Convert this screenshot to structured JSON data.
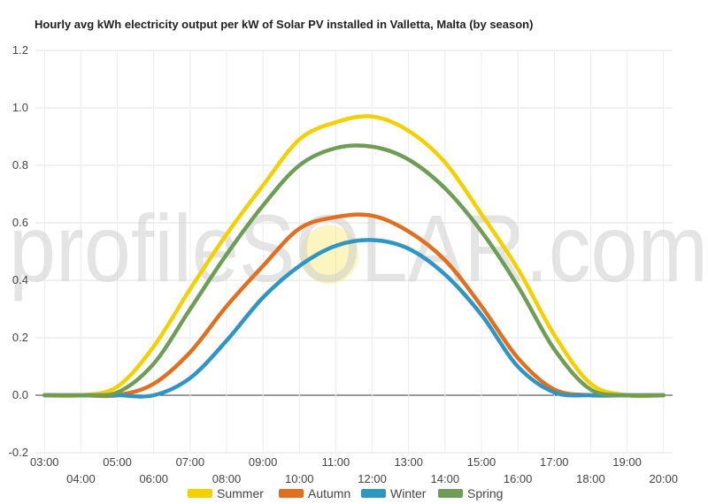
{
  "chart_data": {
    "type": "line",
    "title": "Hourly avg kWh electricity output per kW of Solar PV installed in Valletta, Malta (by season)",
    "xlabel": "",
    "ylabel": "",
    "ylim": [
      -0.2,
      1.2
    ],
    "yticks": [
      "1.2",
      "1.0",
      "0.8",
      "0.6",
      "0.4",
      "0.2",
      "0.0",
      "-0.2"
    ],
    "ytick_values": [
      1.2,
      1.0,
      0.8,
      0.6,
      0.4,
      0.2,
      0.0,
      -0.2
    ],
    "x": [
      3,
      4,
      5,
      6,
      7,
      8,
      9,
      10,
      11,
      12,
      13,
      14,
      15,
      16,
      17,
      18,
      19,
      20
    ],
    "xticks": [
      "03:00",
      "04:00",
      "05:00",
      "06:00",
      "07:00",
      "08:00",
      "09:00",
      "10:00",
      "11:00",
      "12:00",
      "13:00",
      "14:00",
      "15:00",
      "16:00",
      "17:00",
      "18:00",
      "19:00",
      "20:00"
    ],
    "grid": true,
    "legend_position": "bottom",
    "series": [
      {
        "name": "Summer",
        "color": "#f5d000",
        "values": [
          0,
          0,
          0.03,
          0.17,
          0.37,
          0.56,
          0.73,
          0.89,
          0.95,
          0.97,
          0.92,
          0.81,
          0.63,
          0.44,
          0.21,
          0.04,
          0.0,
          0
        ]
      },
      {
        "name": "Autumn",
        "color": "#e07020",
        "values": [
          0,
          0,
          0,
          0.04,
          0.15,
          0.31,
          0.45,
          0.58,
          0.62,
          0.625,
          0.57,
          0.47,
          0.31,
          0.13,
          0.02,
          0,
          0,
          0
        ]
      },
      {
        "name": "Winter",
        "color": "#2e95c4",
        "values": [
          0,
          0,
          0,
          0,
          0.06,
          0.19,
          0.34,
          0.45,
          0.52,
          0.54,
          0.51,
          0.42,
          0.28,
          0.1,
          0.01,
          0,
          0,
          0
        ]
      },
      {
        "name": "Spring",
        "color": "#6e9d55",
        "values": [
          0,
          0,
          0.01,
          0.11,
          0.3,
          0.49,
          0.66,
          0.8,
          0.86,
          0.865,
          0.82,
          0.72,
          0.57,
          0.38,
          0.16,
          0.02,
          0,
          0
        ]
      }
    ]
  },
  "watermark": {
    "text": "profileSOLAR.com",
    "sun_color": "#f7e24a"
  }
}
